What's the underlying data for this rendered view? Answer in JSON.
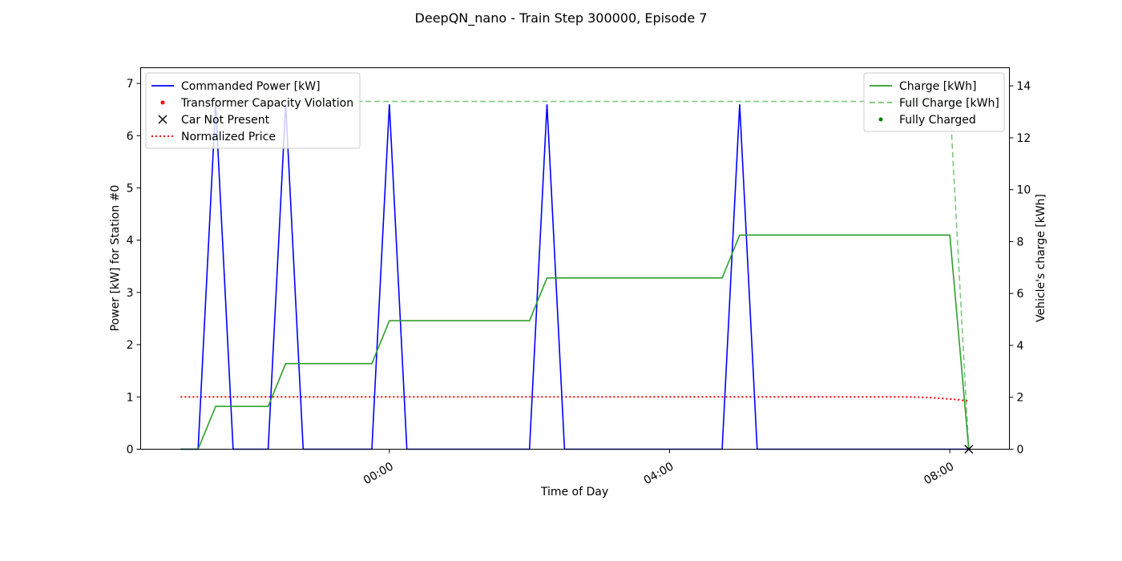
{
  "chart_data": {
    "type": "line",
    "title": "DeepQN_nano - Train Step 300000, Episode 7",
    "xlabel": "Time of Day",
    "ylabel_left": "Power [kW] for Station #0",
    "ylabel_right": "Vehicle's charge [kWh]",
    "x_unit": "hours (relative to 00:00)",
    "xlim": [
      -3.55,
      8.85
    ],
    "ylim_left": [
      0,
      7.3
    ],
    "ylim_right": [
      0,
      14.7
    ],
    "x_ticks": [
      {
        "value": 0,
        "label": "00:00"
      },
      {
        "value": 4,
        "label": "04:00"
      },
      {
        "value": 8,
        "label": "08:00"
      }
    ],
    "y_ticks_left": [
      0,
      1,
      2,
      3,
      4,
      5,
      6,
      7
    ],
    "y_ticks_right": [
      0,
      2,
      4,
      6,
      8,
      10,
      12,
      14
    ],
    "legend_left_position": "upper-left",
    "legend_right_position": "upper-right",
    "grid": false,
    "series": [
      {
        "name": "Commanded Power [kW]",
        "axis": "left",
        "style": "solid",
        "color": "#0000ff",
        "x": [
          -2.98,
          -2.73,
          -2.48,
          -2.23,
          -1.98,
          -1.73,
          -1.48,
          -1.23,
          -0.98,
          -0.73,
          -0.25,
          0.0,
          0.25,
          2.0,
          2.25,
          2.5,
          4.75,
          5.0,
          5.25,
          8.0,
          8.27
        ],
        "y": [
          0,
          0,
          6.6,
          0,
          0,
          0,
          6.6,
          0,
          0,
          0,
          0,
          6.6,
          0,
          0,
          6.6,
          0,
          0,
          6.6,
          0,
          0,
          0
        ]
      },
      {
        "name": "Normalized Price",
        "axis": "left",
        "style": "dotted",
        "color": "#ff0000",
        "x": [
          -2.98,
          -2.0,
          -1.0,
          0.0,
          1.0,
          2.0,
          3.0,
          4.0,
          5.0,
          6.0,
          7.0,
          7.4,
          7.7,
          7.9,
          8.1,
          8.27
        ],
        "y": [
          1.0,
          1.0,
          1.0,
          1.0,
          1.0,
          1.0,
          1.0,
          1.0,
          1.0,
          1.0,
          1.0,
          1.0,
          0.99,
          0.97,
          0.95,
          0.92
        ]
      },
      {
        "name": "Charge [kWh]",
        "axis": "right",
        "style": "solid",
        "color": "#2ca02c",
        "x": [
          -2.98,
          -2.73,
          -2.48,
          -1.73,
          -1.48,
          -0.25,
          0.0,
          2.0,
          2.25,
          4.75,
          5.0,
          8.0,
          8.27
        ],
        "y": [
          0,
          0,
          1.65,
          1.65,
          3.3,
          3.3,
          4.95,
          4.95,
          6.6,
          6.6,
          8.25,
          8.25,
          0
        ]
      },
      {
        "name": "Full Charge [kWh]",
        "axis": "right",
        "style": "dashed",
        "color": "#2ca02c",
        "x": [
          -2.98,
          8.0,
          8.27
        ],
        "y": [
          13.4,
          13.4,
          0
        ]
      },
      {
        "name": "Transformer Capacity Violation",
        "axis": "left",
        "style": "points",
        "color": "#ff0000",
        "x": [],
        "y": []
      },
      {
        "name": "Car Not Present",
        "axis": "left",
        "style": "x-markers",
        "color": "#000000",
        "x": [
          8.27
        ],
        "y": [
          0
        ]
      },
      {
        "name": "Fully Charged",
        "axis": "right",
        "style": "points",
        "color": "#008000",
        "x": [],
        "y": []
      }
    ],
    "legend_left": [
      {
        "label": "Commanded Power [kW]",
        "marker": "line",
        "color": "#0000ff"
      },
      {
        "label": "Transformer Capacity Violation",
        "marker": "dot",
        "color": "#ff0000"
      },
      {
        "label": "Car Not Present",
        "marker": "x",
        "color": "#000000"
      },
      {
        "label": "Normalized Price",
        "marker": "dotted",
        "color": "#ff0000"
      }
    ],
    "legend_right": [
      {
        "label": "Charge [kWh]",
        "marker": "line",
        "color": "#2ca02c"
      },
      {
        "label": "Full Charge [kWh]",
        "marker": "dashed",
        "color": "#2ca02c"
      },
      {
        "label": "Fully Charged",
        "marker": "dot",
        "color": "#008000"
      }
    ]
  }
}
